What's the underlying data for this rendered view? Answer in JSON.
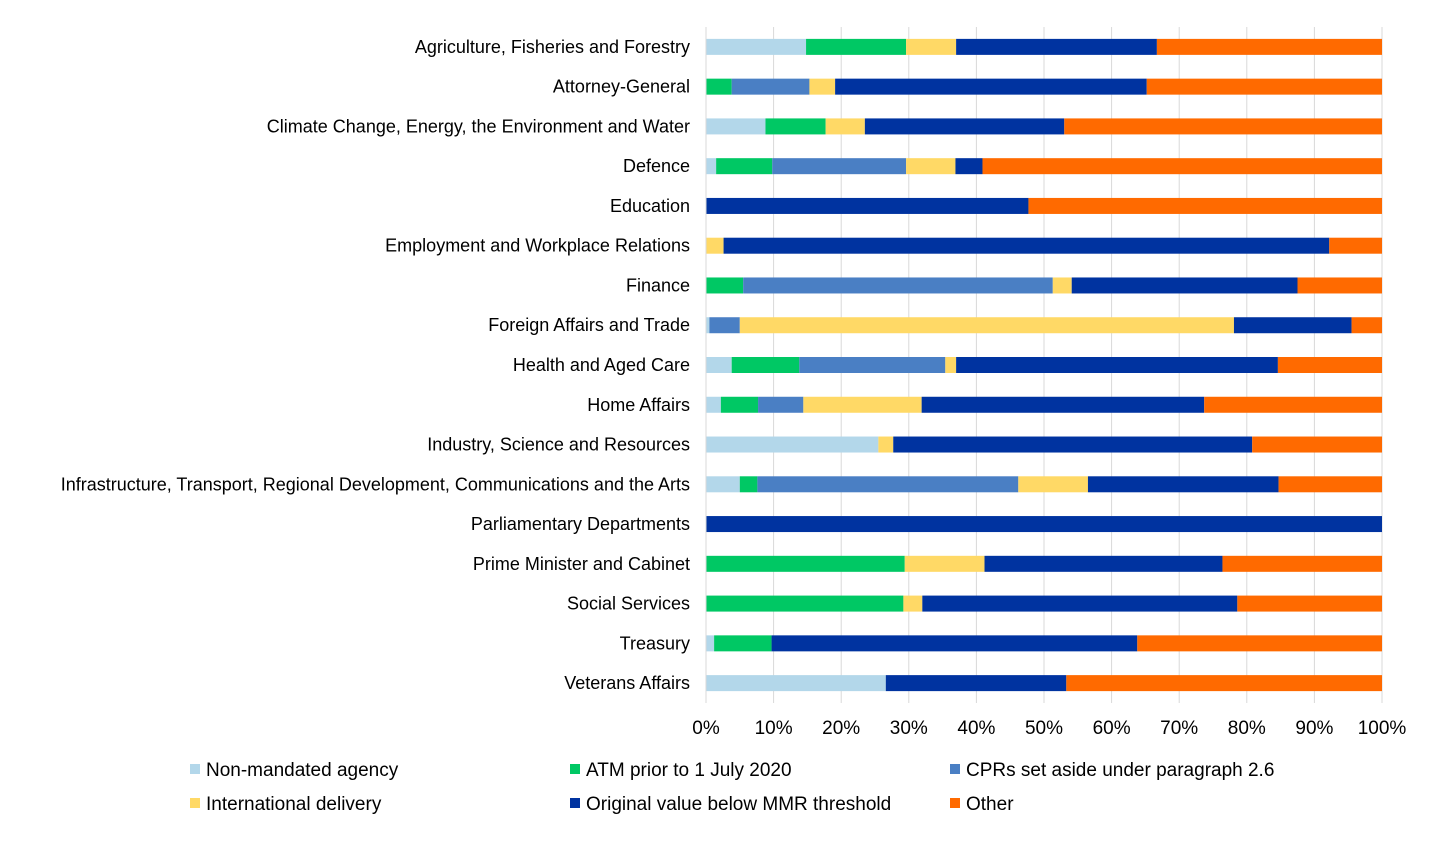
{
  "chart_data": {
    "type": "bar",
    "orientation": "horizontal",
    "stacked": "percent",
    "title": "",
    "xlabel": "",
    "ylabel": "",
    "xlim": [
      0,
      100
    ],
    "x_ticks": [
      "0%",
      "10%",
      "20%",
      "30%",
      "40%",
      "50%",
      "60%",
      "70%",
      "80%",
      "90%",
      "100%"
    ],
    "grid": true,
    "legend_position": "bottom",
    "categories": [
      "Agriculture, Fisheries and Forestry",
      "Attorney-General",
      "Climate Change, Energy, the Environment and Water",
      "Defence",
      "Education",
      "Employment and Workplace Relations",
      "Finance",
      "Foreign Affairs and Trade",
      "Health and Aged Care",
      "Home Affairs",
      "Industry, Science and Resources",
      "Infrastructure, Transport, Regional Development, Communications and the Arts",
      "Parliamentary Departments",
      "Prime Minister and Cabinet",
      "Social Services",
      "Treasury",
      "Veterans Affairs"
    ],
    "series": [
      {
        "name": "Non-mandated agency",
        "color": "#b3d7ea",
        "values": [
          14.8,
          0,
          8.8,
          1.5,
          0,
          0,
          0,
          0.5,
          3.8,
          2.2,
          25.5,
          5.0,
          0,
          0,
          0,
          1.2,
          26.6
        ]
      },
      {
        "name": "ATM prior to 1 July 2020",
        "color": "#00c864",
        "values": [
          14.8,
          3.8,
          8.9,
          8.3,
          0,
          0,
          5.5,
          0,
          10.0,
          5.5,
          0,
          2.6,
          0,
          29.4,
          29.2,
          8.5,
          0
        ]
      },
      {
        "name": "CPRs set aside under paragraph 2.6",
        "color": "#4a7fc4",
        "values": [
          0,
          11.5,
          0,
          19.8,
          0,
          0,
          45.8,
          4.5,
          21.6,
          6.7,
          0,
          38.6,
          0,
          0,
          0,
          0,
          0
        ]
      },
      {
        "name": "International delivery",
        "color": "#ffd966",
        "values": [
          7.4,
          3.8,
          5.8,
          7.3,
          0,
          2.6,
          2.8,
          73.1,
          1.6,
          17.5,
          2.2,
          10.3,
          0,
          11.8,
          2.8,
          0,
          0
        ]
      },
      {
        "name": "Original value below MMR threshold",
        "color": "#0033a0",
        "values": [
          29.7,
          46.1,
          29.5,
          4.0,
          47.7,
          89.6,
          33.4,
          17.4,
          47.6,
          41.8,
          53.1,
          28.2,
          100,
          35.2,
          46.6,
          54.1,
          26.7
        ]
      },
      {
        "name": "Other",
        "color": "#ff6a00",
        "values": [
          33.3,
          34.8,
          47.0,
          59.1,
          52.3,
          7.8,
          12.5,
          4.5,
          15.4,
          26.3,
          19.2,
          15.3,
          0,
          23.6,
          21.4,
          36.2,
          46.7
        ]
      }
    ]
  }
}
